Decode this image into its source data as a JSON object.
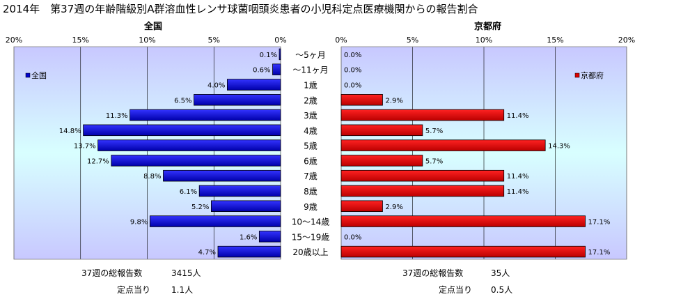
{
  "title": "2014年　第37週の年齢階級別A群溶血性レンサ球菌咽頭炎患者の小児科定点医療機関からの報告割合",
  "chart_data": {
    "type": "bar",
    "orientation": "horizontal",
    "categories": [
      "～5ヶ月",
      "～11ヶ月",
      "1歳",
      "2歳",
      "3歳",
      "4歳",
      "5歳",
      "6歳",
      "7歳",
      "8歳",
      "9歳",
      "10～14歳",
      "15～19歳",
      "20歳以上"
    ],
    "series": [
      {
        "name": "全国",
        "panel_title": "全国",
        "values": [
          0.1,
          0.6,
          4.0,
          6.5,
          11.3,
          14.8,
          13.7,
          12.7,
          8.8,
          6.1,
          5.2,
          9.8,
          1.6,
          4.7
        ],
        "labels": [
          "0.1%",
          "0.6%",
          "4.0%",
          "6.5%",
          "11.3%",
          "14.8%",
          "13.7%",
          "12.7%",
          "8.8%",
          "6.1%",
          "5.2%",
          "9.8%",
          "1.6%",
          "4.7%"
        ],
        "color": "#0000cc",
        "direction": "left",
        "legend_position": "top-left"
      },
      {
        "name": "京都府",
        "panel_title": "京都府",
        "values": [
          0.0,
          0.0,
          0.0,
          2.9,
          11.4,
          5.7,
          14.3,
          5.7,
          11.4,
          11.4,
          2.9,
          17.1,
          0.0,
          17.1
        ],
        "labels": [
          "0.0%",
          "0.0%",
          "0.0%",
          "2.9%",
          "11.4%",
          "5.7%",
          "14.3%",
          "5.7%",
          "11.4%",
          "11.4%",
          "2.9%",
          "17.1%",
          "0.0%",
          "17.1%"
        ],
        "color": "#dd0000",
        "direction": "right",
        "legend_position": "top-right"
      }
    ],
    "xlim": [
      0,
      20
    ],
    "xticks": [
      "20%",
      "15%",
      "10%",
      "5%",
      "0%"
    ],
    "xticks_right": [
      "0%",
      "5%",
      "10%",
      "15%",
      "20%"
    ],
    "grid": true
  },
  "footer": {
    "left_total_label": "37週の総報告数",
    "left_total_value": "3415人",
    "left_per_label": "定点当り",
    "left_per_value": "1.1人",
    "right_total_label": "37週の総報告数",
    "right_total_value": "35人",
    "right_per_label": "定点当り",
    "right_per_value": "0.5人"
  }
}
